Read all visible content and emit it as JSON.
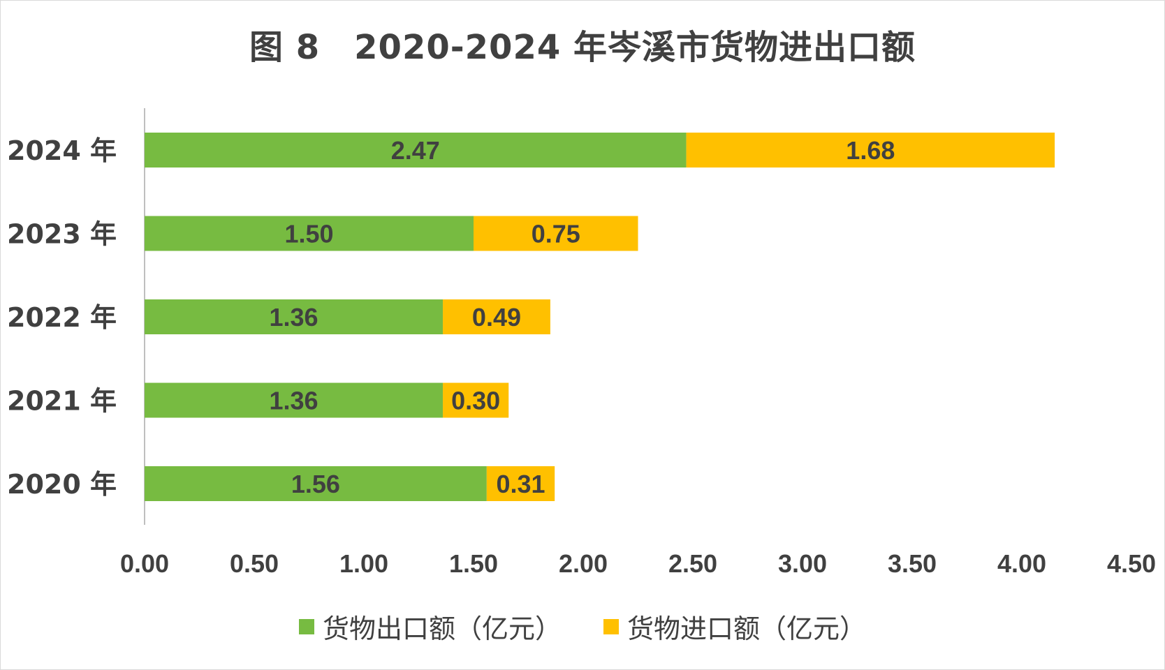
{
  "title": "图 8　2020-2024 年岑溪市货物进出口额",
  "colors": {
    "export": "#77bb41",
    "import": "#ffc000",
    "text": "#404040",
    "axis": "#bfbfbf"
  },
  "chart_data": {
    "type": "bar",
    "orientation": "horizontal",
    "stacked": true,
    "categories": [
      "2024 年",
      "2023 年",
      "2022 年",
      "2021 年",
      "2020 年"
    ],
    "series": [
      {
        "name": "货物出口额（亿元）",
        "values": [
          2.47,
          1.5,
          1.36,
          1.36,
          1.56
        ],
        "labels": [
          "2.47",
          "1.50",
          "1.36",
          "1.36",
          "1.56"
        ]
      },
      {
        "name": "货物进口额（亿元）",
        "values": [
          1.68,
          0.75,
          0.49,
          0.3,
          0.31
        ],
        "labels": [
          "1.68",
          "0.75",
          "0.49",
          "0.30",
          "0.31"
        ]
      }
    ],
    "xlim": [
      0,
      4.5
    ],
    "xticks": [
      "0.00",
      "0.50",
      "1.00",
      "1.50",
      "2.00",
      "2.50",
      "3.00",
      "3.50",
      "4.00",
      "4.50"
    ],
    "xtick_values": [
      0,
      0.5,
      1.0,
      1.5,
      2.0,
      2.5,
      3.0,
      3.5,
      4.0,
      4.5
    ],
    "grid": false,
    "legend_position": "bottom"
  }
}
